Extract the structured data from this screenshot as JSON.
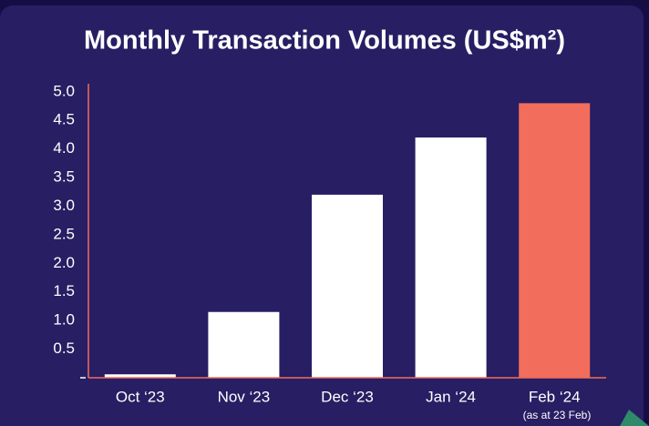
{
  "chart_data": {
    "type": "bar",
    "title": "Monthly Transaction Volumes (US$m²)",
    "categories": [
      "Oct ‘23",
      "Nov ‘23",
      "Dec ‘23",
      "Jan ‘24",
      "Feb ‘24"
    ],
    "values": [
      0.06,
      1.15,
      3.2,
      4.2,
      4.8
    ],
    "colors": [
      "#ffffff",
      "#ffffff",
      "#ffffff",
      "#ffffff",
      "#f26d5b"
    ],
    "annotation": "(as at 23 Feb)",
    "ylim": [
      0,
      5.14
    ],
    "yticks": [
      0.5,
      {
        "value": 1,
        "label": "1.0"
      },
      1.5,
      {
        "value": 2,
        "label": "2.0"
      },
      2.5,
      {
        "value": 3,
        "label": "3.0"
      },
      3.5,
      {
        "value": 4,
        "label": "4.0"
      },
      4.5,
      {
        "value": 5,
        "label": "5.0"
      }
    ],
    "axis_color": "#f26d5b",
    "grid": false
  }
}
